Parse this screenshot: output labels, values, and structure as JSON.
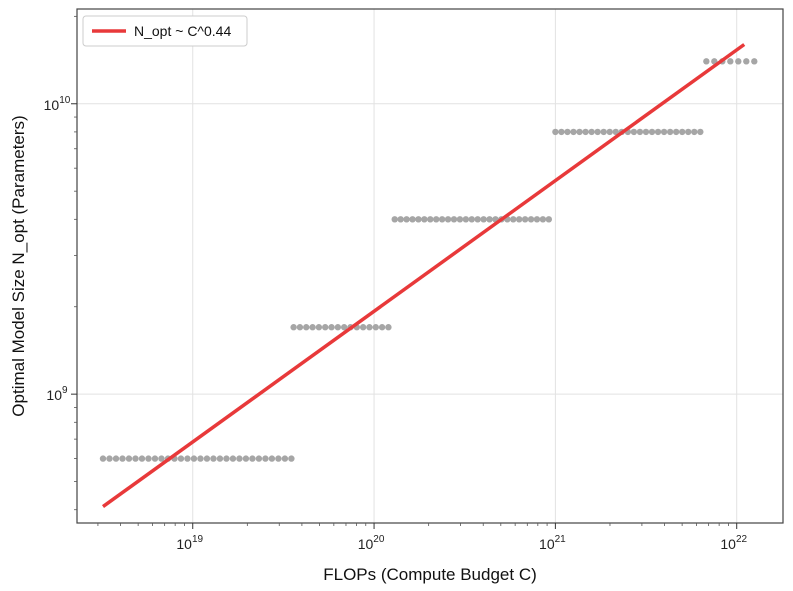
{
  "chart_data": {
    "type": "scatter",
    "xscale": "log",
    "yscale": "log",
    "xlim": [
      2.3e+18,
      1.8e+22
    ],
    "ylim": [
      360000000.0,
      21200000000.0
    ],
    "grid": true,
    "xlabel": "FLOPs (Compute Budget C)",
    "ylabel": "Optimal Model Size N_opt (Parameters)",
    "x_ticks": [
      {
        "value": 1e+19,
        "base": "10",
        "exp": "19"
      },
      {
        "value": 1e+20,
        "base": "10",
        "exp": "20"
      },
      {
        "value": 1e+21,
        "base": "10",
        "exp": "21"
      },
      {
        "value": 1e+22,
        "base": "10",
        "exp": "22"
      }
    ],
    "y_ticks": [
      {
        "value": 1000000000.0,
        "base": "10",
        "exp": "9"
      },
      {
        "value": 10000000000.0,
        "base": "10",
        "exp": "10"
      }
    ],
    "legend": {
      "position": "top-left",
      "entries": [
        {
          "label": "N_opt ~ C^0.44",
          "color": "#e8393a"
        }
      ]
    },
    "scatter_groups": [
      {
        "y": 600000000.0,
        "x_start": 3.2e+18,
        "x_end": 3.5e+19,
        "count": 30
      },
      {
        "y": 1700000000.0,
        "x_start": 3.6e+19,
        "x_end": 1.2e+20,
        "count": 16
      },
      {
        "y": 4000000000.0,
        "x_start": 1.3e+20,
        "x_end": 9.2e+20,
        "count": 27
      },
      {
        "y": 8000000000.0,
        "x_start": 1e+21,
        "x_end": 6.3e+21,
        "count": 25
      },
      {
        "y": 14000000000.0,
        "x_start": 6.8e+21,
        "x_end": 1.25e+22,
        "count": 7
      }
    ],
    "series": [
      {
        "name": "N_opt ~ C^0.44",
        "type": "line",
        "color": "#e8393a",
        "x": [
          3.2e+18,
          1.1e+22
        ],
        "y": [
          410000000.0,
          16000000000.0
        ]
      }
    ],
    "colors": {
      "scatter": "#a6a6a6",
      "fit_line": "#e8393a",
      "grid": "#e2e2e2",
      "frame": "#444444"
    }
  }
}
